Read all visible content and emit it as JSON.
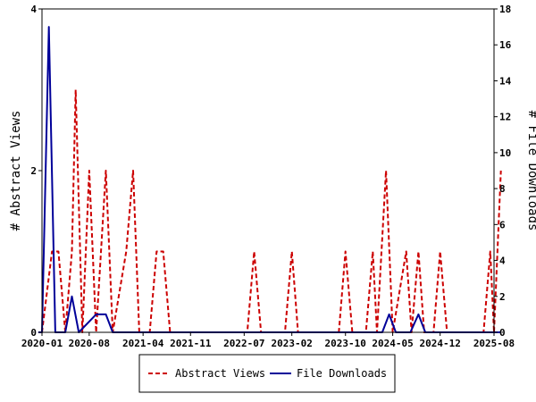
{
  "chart_data": {
    "type": "line",
    "x_tick_labels": [
      "2020-01",
      "2020-08",
      "2021-04",
      "2021-11",
      "2022-07",
      "2023-02",
      "2023-10",
      "2024-05",
      "2024-12",
      "2025-08"
    ],
    "y_left": {
      "label": "# Abstract Views",
      "ticks": [
        0,
        2,
        4
      ],
      "ylim": [
        0,
        4
      ]
    },
    "y_right": {
      "label": "# File Downloads",
      "ticks": [
        0,
        2,
        4,
        6,
        8,
        10,
        12,
        14,
        16,
        18
      ],
      "ylim": [
        0,
        18
      ]
    },
    "grid": false,
    "legend_position": "bottom",
    "series": [
      {
        "name": "Abstract Views",
        "axis": "left",
        "color": "#cc0000",
        "style": "dashed",
        "points": [
          [
            "2020-01-01",
            0
          ],
          [
            "2020-02-15",
            1
          ],
          [
            "2020-03-15",
            1
          ],
          [
            "2020-04-15",
            0
          ],
          [
            "2020-05-15",
            1
          ],
          [
            "2020-06-01",
            3
          ],
          [
            "2020-07-01",
            0
          ],
          [
            "2020-08-01",
            2
          ],
          [
            "2020-09-01",
            0
          ],
          [
            "2020-10-15",
            2
          ],
          [
            "2020-11-15",
            0
          ],
          [
            "2021-01-15",
            1
          ],
          [
            "2021-02-15",
            2
          ],
          [
            "2021-03-15",
            0
          ],
          [
            "2021-05-01",
            0
          ],
          [
            "2021-06-01",
            1
          ],
          [
            "2021-07-01",
            1
          ],
          [
            "2021-08-01",
            0
          ],
          [
            "2022-07-15",
            0
          ],
          [
            "2022-08-15",
            1
          ],
          [
            "2022-09-15",
            0
          ],
          [
            "2023-01-01",
            0
          ],
          [
            "2023-02-01",
            1
          ],
          [
            "2023-03-01",
            0
          ],
          [
            "2023-09-01",
            0
          ],
          [
            "2023-10-01",
            1
          ],
          [
            "2023-11-01",
            0
          ],
          [
            "2024-01-01",
            0
          ],
          [
            "2024-02-01",
            1
          ],
          [
            "2024-02-20",
            0
          ],
          [
            "2024-04-01",
            2
          ],
          [
            "2024-05-01",
            0
          ],
          [
            "2024-07-01",
            1
          ],
          [
            "2024-07-25",
            0
          ],
          [
            "2024-08-25",
            1
          ],
          [
            "2024-09-20",
            0
          ],
          [
            "2024-11-01",
            0
          ],
          [
            "2024-12-01",
            1
          ],
          [
            "2025-01-01",
            0
          ],
          [
            "2025-06-15",
            0
          ],
          [
            "2025-07-15",
            1
          ],
          [
            "2025-08-01",
            0
          ],
          [
            "2025-09-01",
            2
          ]
        ]
      },
      {
        "name": "File Downloads",
        "axis": "right",
        "color": "#000099",
        "style": "solid",
        "points": [
          [
            "2019-12-15",
            0
          ],
          [
            "2020-01-01",
            0
          ],
          [
            "2020-02-01",
            17
          ],
          [
            "2020-03-01",
            0
          ],
          [
            "2020-04-15",
            0
          ],
          [
            "2020-05-15",
            2
          ],
          [
            "2020-06-15",
            0
          ],
          [
            "2020-09-01",
            1
          ],
          [
            "2020-10-15",
            1
          ],
          [
            "2020-11-15",
            0
          ],
          [
            "2024-03-15",
            0
          ],
          [
            "2024-04-15",
            1
          ],
          [
            "2024-05-15",
            0
          ],
          [
            "2024-07-20",
            0
          ],
          [
            "2024-08-25",
            1
          ],
          [
            "2024-09-25",
            0
          ],
          [
            "2025-09-01",
            0
          ]
        ]
      }
    ]
  }
}
